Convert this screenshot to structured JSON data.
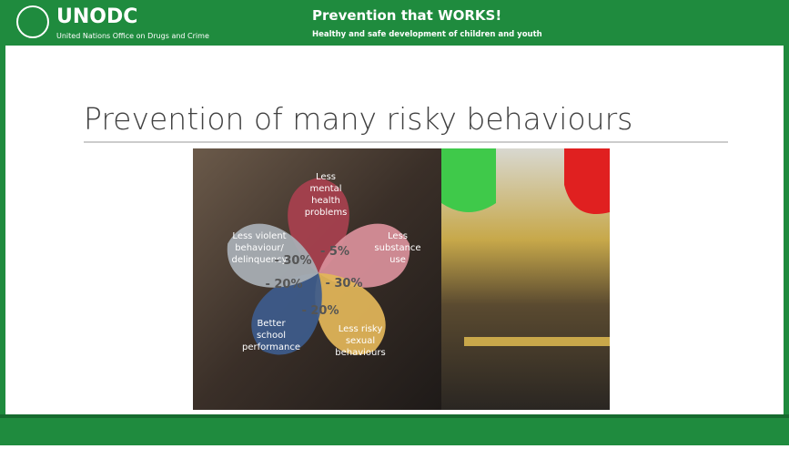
{
  "header": {
    "logo": "UNODC",
    "organization": "United Nations Office on Drugs and Crime",
    "title": "Prevention that WORKS!",
    "subtitle": "Healthy and safe development of children and youth"
  },
  "slide_title": "Prevention of many risky behaviours",
  "petals": [
    {
      "label": [
        "Less",
        "mental",
        "health",
        "problems"
      ],
      "value": "- 5%"
    },
    {
      "label": [
        "Less",
        "substance",
        "use"
      ],
      "value": "- 30%"
    },
    {
      "label": [
        "Less risky",
        "sexual",
        "behaviours"
      ],
      "value": "- 20%"
    },
    {
      "label": [
        "Better",
        "school",
        "performance"
      ],
      "value": "- 20%"
    },
    {
      "label": [
        "Less violent",
        "behaviour/",
        "delinquency"
      ],
      "value": "- 30%"
    }
  ]
}
